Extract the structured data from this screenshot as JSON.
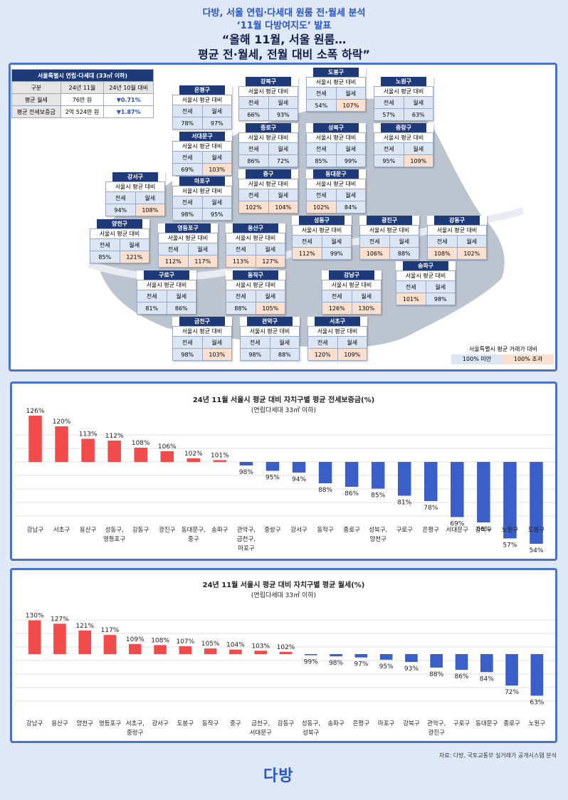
{
  "header": {
    "line1": "다방, 서울 연립·다세대 원룸 전·월세 분석",
    "line2": "‘11월 다방여지도’ 발표",
    "line3": "“올해 11월, 서울 원룸…",
    "line4": "평균 전·월세, 전월 대비 소폭 하락”"
  },
  "summary": {
    "title": "서울특별시 연립·다세대 (33㎡ 이하)",
    "col1": "구분",
    "col2": "24년 11월",
    "col3": "24년 10월 대비",
    "row1_label": "평균 월세",
    "row1_value": "76만 원",
    "row1_change": "▼0.71%",
    "row2_label": "평균 전세보증금",
    "row2_value": "2억 524만 원",
    "row2_change": "▼1.87%"
  },
  "map_labels": {
    "sub": "서울시 평균 대비",
    "jeonse": "전세",
    "wolse": "월세"
  },
  "districts": [
    {
      "name": "은평구",
      "jeonse": "78%",
      "wolse": "97%",
      "jh": false,
      "wh": false
    },
    {
      "name": "강북구",
      "jeonse": "66%",
      "wolse": "93%",
      "jh": false,
      "wh": false
    },
    {
      "name": "도봉구",
      "jeonse": "54%",
      "wolse": "107%",
      "jh": false,
      "wh": true
    },
    {
      "name": "노원구",
      "jeonse": "57%",
      "wolse": "63%",
      "jh": false,
      "wh": false
    },
    {
      "name": "서대문구",
      "jeonse": "69%",
      "wolse": "103%",
      "jh": false,
      "wh": true
    },
    {
      "name": "종로구",
      "jeonse": "86%",
      "wolse": "72%",
      "jh": false,
      "wh": false
    },
    {
      "name": "성북구",
      "jeonse": "85%",
      "wolse": "99%",
      "jh": false,
      "wh": false
    },
    {
      "name": "중랑구",
      "jeonse": "95%",
      "wolse": "109%",
      "jh": false,
      "wh": true
    },
    {
      "name": "강서구",
      "jeonse": "94%",
      "wolse": "108%",
      "jh": false,
      "wh": true
    },
    {
      "name": "마포구",
      "jeonse": "98%",
      "wolse": "95%",
      "jh": false,
      "wh": false
    },
    {
      "name": "중구",
      "jeonse": "102%",
      "wolse": "104%",
      "jh": true,
      "wh": true
    },
    {
      "name": "동대문구",
      "jeonse": "102%",
      "wolse": "84%",
      "jh": true,
      "wh": false
    },
    {
      "name": "양천구",
      "jeonse": "85%",
      "wolse": "121%",
      "jh": false,
      "wh": true
    },
    {
      "name": "영등포구",
      "jeonse": "112%",
      "wolse": "117%",
      "jh": true,
      "wh": true
    },
    {
      "name": "용산구",
      "jeonse": "113%",
      "wolse": "127%",
      "jh": true,
      "wh": true
    },
    {
      "name": "성동구",
      "jeonse": "112%",
      "wolse": "99%",
      "jh": true,
      "wh": false
    },
    {
      "name": "광진구",
      "jeonse": "106%",
      "wolse": "88%",
      "jh": true,
      "wh": false
    },
    {
      "name": "강동구",
      "jeonse": "108%",
      "wolse": "102%",
      "jh": true,
      "wh": true
    },
    {
      "name": "구로구",
      "jeonse": "81%",
      "wolse": "86%",
      "jh": false,
      "wh": false
    },
    {
      "name": "동작구",
      "jeonse": "88%",
      "wolse": "105%",
      "jh": false,
      "wh": true
    },
    {
      "name": "강남구",
      "jeonse": "126%",
      "wolse": "130%",
      "jh": true,
      "wh": true
    },
    {
      "name": "송파구",
      "jeonse": "101%",
      "wolse": "98%",
      "jh": true,
      "wh": false
    },
    {
      "name": "금천구",
      "jeonse": "98%",
      "wolse": "103%",
      "jh": false,
      "wh": true
    },
    {
      "name": "관악구",
      "jeonse": "98%",
      "wolse": "88%",
      "jh": false,
      "wh": false
    },
    {
      "name": "서초구",
      "jeonse": "120%",
      "wolse": "109%",
      "jh": true,
      "wh": true
    }
  ],
  "legend": {
    "title": "서울특별시 평균 거래가 대비",
    "low": "100% 미만",
    "high": "100% 초과"
  },
  "colors": {
    "navy": "#1f3a78",
    "blue": "#2a55c8",
    "red": "#f14b4b",
    "barblue": "#3a5fc8",
    "low": "#dbe5f4",
    "high": "#fbe0cf"
  },
  "chart_data": [
    {
      "type": "bar",
      "title": "24년 11월 서울시 평균 대비 자치구별 평균 전세보증금(%)",
      "subtitle": "(연립다세대 33㎡ 이하)",
      "baseline": 100,
      "categories": [
        "강남구",
        "서초구",
        "용산구",
        "성동구, 영등포구",
        "강동구",
        "광진구",
        "동대문구, 중구",
        "송파구",
        "관악구, 금천구, 마포구",
        "중랑구",
        "강서구",
        "동작구",
        "종로구",
        "성북구, 양천구",
        "구로구",
        "은평구",
        "서대문구",
        "강북구",
        "노원구",
        "도봉구"
      ],
      "values": [
        126,
        120,
        113,
        112,
        108,
        106,
        102,
        101,
        98,
        95,
        94,
        88,
        86,
        85,
        81,
        78,
        69,
        66,
        57,
        54
      ]
    },
    {
      "type": "bar",
      "title": "24년 11월 서울시 평균 대비 자치구별 평균 월세(%)",
      "subtitle": "(연립다세대 33㎡ 이하)",
      "baseline": 100,
      "categories": [
        "강남구",
        "용산구",
        "양천구",
        "영등포구",
        "서초구, 중랑구",
        "강서구",
        "도봉구",
        "동작구",
        "중구",
        "금천구, 서대문구",
        "강동구",
        "성동구, 성북구",
        "송파구",
        "은평구",
        "마포구",
        "강북구",
        "관악구, 광진구",
        "구로구",
        "동대문구",
        "종로구",
        "노원구"
      ],
      "values": [
        130,
        127,
        121,
        117,
        109,
        108,
        107,
        105,
        104,
        103,
        102,
        99,
        98,
        97,
        95,
        93,
        88,
        86,
        84,
        72,
        63
      ]
    }
  ],
  "source": "자료: 다방, 국토교통부 실거래가 공개시스템 분석",
  "logo": "다방"
}
